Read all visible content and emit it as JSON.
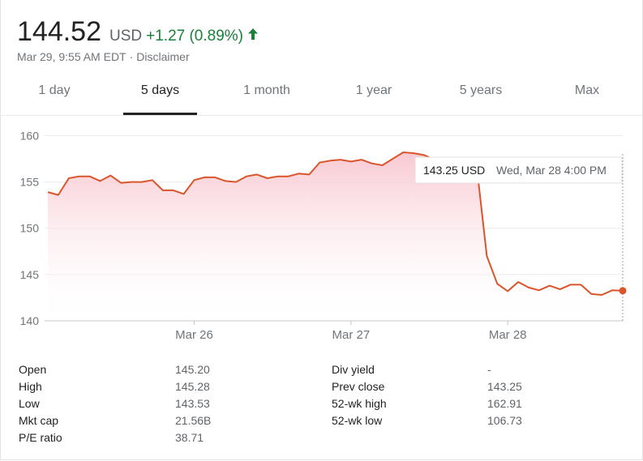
{
  "quote": {
    "price": "144.52",
    "currency": "USD",
    "change": "+1.27 (0.89%)",
    "change_icon": "up-arrow-icon",
    "timestamp": "Mar 29, 9:55 AM EDT",
    "separator": "·",
    "disclaimer": "Disclaimer"
  },
  "tabs": [
    {
      "label": "1 day",
      "active": false
    },
    {
      "label": "5 days",
      "active": true
    },
    {
      "label": "1 month",
      "active": false
    },
    {
      "label": "1 year",
      "active": false
    },
    {
      "label": "5 years",
      "active": false
    },
    {
      "label": "Max",
      "active": false
    }
  ],
  "tooltip": {
    "value": "143.25 USD",
    "time": "Wed, Mar 28 4:00 PM"
  },
  "colors": {
    "line": "#d9552b",
    "fill_top": "#f8c6cf",
    "positive": "#188038"
  },
  "chart_data": {
    "type": "area",
    "ylim": [
      140,
      161
    ],
    "yticks": [
      "140",
      "145",
      "150",
      "155",
      "160"
    ],
    "xticks": [
      {
        "label": "Mar 26",
        "x": 14
      },
      {
        "label": "Mar 27",
        "x": 29
      },
      {
        "label": "Mar 28",
        "x": 44
      }
    ],
    "grid": true,
    "values": [
      153.9,
      153.6,
      155.4,
      155.6,
      155.6,
      155.1,
      155.7,
      154.9,
      155.0,
      155.0,
      155.2,
      154.1,
      154.1,
      153.7,
      155.2,
      155.5,
      155.5,
      155.1,
      155.0,
      155.6,
      155.8,
      155.4,
      155.6,
      155.6,
      155.9,
      155.8,
      157.1,
      157.3,
      157.4,
      157.2,
      157.4,
      157.0,
      156.8,
      157.5,
      158.2,
      158.1,
      157.9,
      157.4,
      157.1,
      156.9,
      156.5,
      157.0,
      147.0,
      144.0,
      143.2,
      144.2,
      143.6,
      143.3,
      143.8,
      143.4,
      143.9,
      143.9,
      142.9,
      142.8,
      143.3,
      143.25
    ],
    "highlight_index": 55
  },
  "stats": [
    {
      "label": "Open",
      "value": "145.20"
    },
    {
      "label": "High",
      "value": "145.28"
    },
    {
      "label": "Low",
      "value": "143.53"
    },
    {
      "label": "Mkt cap",
      "value": "21.56B"
    },
    {
      "label": "P/E ratio",
      "value": "38.71"
    },
    {
      "label": "Div yield",
      "value": "-"
    },
    {
      "label": "Prev close",
      "value": "143.25"
    },
    {
      "label": "52-wk high",
      "value": "162.91"
    },
    {
      "label": "52-wk low",
      "value": "106.73"
    }
  ]
}
